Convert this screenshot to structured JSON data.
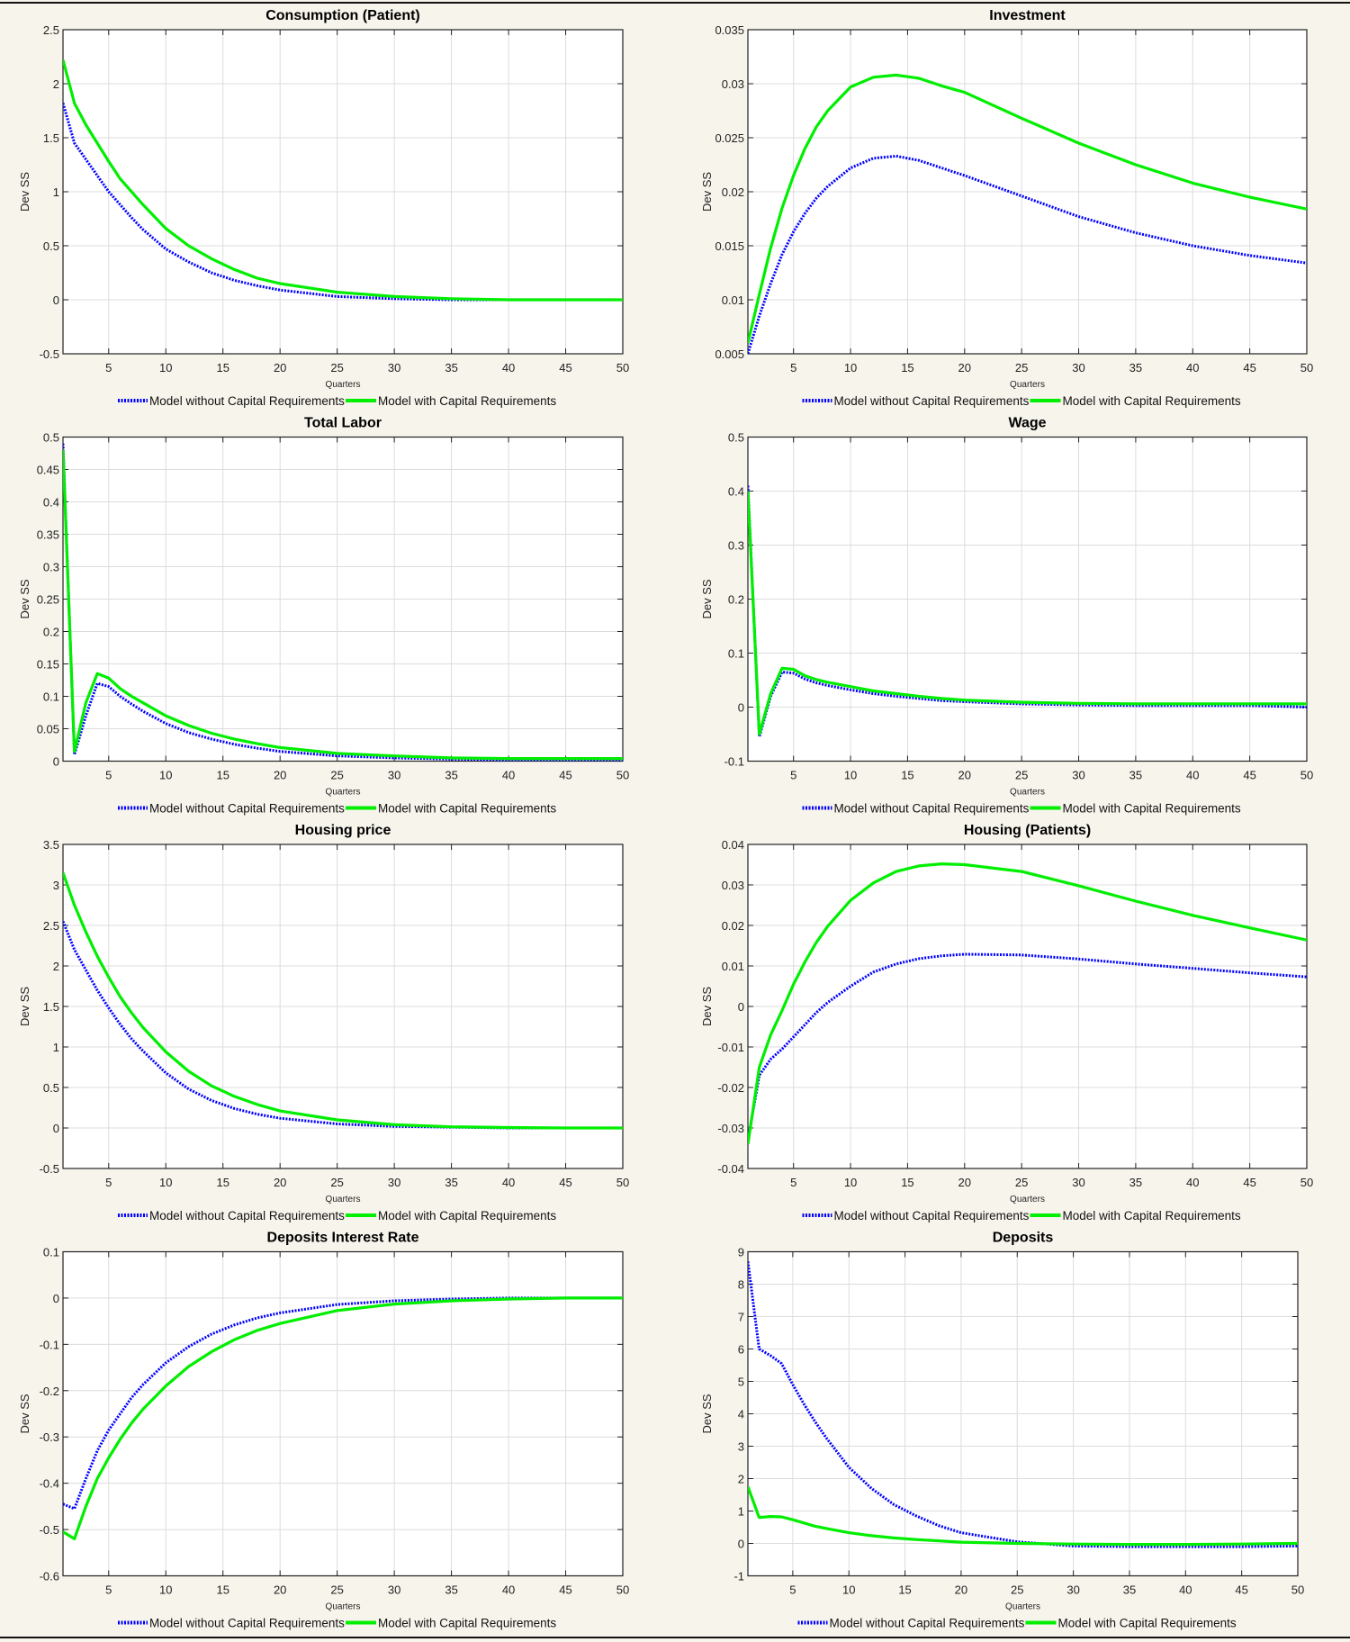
{
  "colors": {
    "without": "#0000ff",
    "with": "#00ee00",
    "grid": "#dcdcdc",
    "background": "#f7f4ec"
  },
  "legend": {
    "without": "Model without Capital Requirements",
    "with": "Model with Capital Requirements"
  },
  "chart_data": [
    {
      "type": "line",
      "title": "Consumption (Patient)",
      "xlabel": "Quarters",
      "ylabel": "Dev SS",
      "xlim": [
        1,
        50
      ],
      "ylim": [
        -0.5,
        2.5
      ],
      "grid": true,
      "legend_position": "bottom",
      "xticks": [
        5,
        10,
        15,
        20,
        25,
        30,
        35,
        40,
        45,
        50
      ],
      "yticks": [
        "-0.5",
        "0",
        "0.5",
        "1",
        "1.5",
        "2",
        "2.5"
      ],
      "x": [
        1,
        2,
        3,
        4,
        5,
        6,
        7,
        8,
        10,
        12,
        14,
        16,
        18,
        20,
        25,
        30,
        35,
        40,
        45,
        50
      ],
      "series": [
        {
          "name": "Model without Capital Requirements",
          "style": "dotted",
          "values": [
            1.82,
            1.45,
            1.3,
            1.15,
            1.0,
            0.88,
            0.76,
            0.65,
            0.47,
            0.35,
            0.25,
            0.18,
            0.13,
            0.09,
            0.03,
            0.01,
            0,
            0,
            0,
            0
          ]
        },
        {
          "name": "Model with Capital Requirements",
          "style": "solid",
          "values": [
            2.22,
            1.82,
            1.62,
            1.45,
            1.28,
            1.12,
            1.0,
            0.88,
            0.66,
            0.5,
            0.38,
            0.28,
            0.2,
            0.15,
            0.07,
            0.03,
            0.01,
            0,
            0,
            0
          ]
        }
      ]
    },
    {
      "type": "line",
      "title": "Investment",
      "xlabel": "Quarters",
      "ylabel": "Dev SS",
      "xlim": [
        1,
        50
      ],
      "ylim": [
        0.005,
        0.035
      ],
      "grid": true,
      "legend_position": "bottom",
      "xticks": [
        5,
        10,
        15,
        20,
        25,
        30,
        35,
        40,
        45,
        50
      ],
      "yticks": [
        "0.005",
        "0.01",
        "0.015",
        "0.02",
        "0.025",
        "0.03",
        "0.035"
      ],
      "x": [
        1,
        2,
        3,
        4,
        5,
        6,
        7,
        8,
        10,
        12,
        14,
        16,
        18,
        20,
        25,
        30,
        35,
        40,
        45,
        50
      ],
      "series": [
        {
          "name": "Model without Capital Requirements",
          "style": "dotted",
          "values": [
            0.005,
            0.0085,
            0.0115,
            0.0142,
            0.0163,
            0.018,
            0.0194,
            0.0205,
            0.0222,
            0.0231,
            0.0233,
            0.0229,
            0.0222,
            0.0215,
            0.0196,
            0.0177,
            0.0162,
            0.015,
            0.0141,
            0.0134
          ]
        },
        {
          "name": "Model with Capital Requirements",
          "style": "solid",
          "values": [
            0.006,
            0.0105,
            0.0148,
            0.0185,
            0.0215,
            0.024,
            0.026,
            0.0275,
            0.0297,
            0.0306,
            0.0308,
            0.0305,
            0.0298,
            0.0292,
            0.0268,
            0.0245,
            0.0225,
            0.0208,
            0.0195,
            0.0184
          ]
        }
      ]
    },
    {
      "type": "line",
      "title": "Total Labor",
      "xlabel": "Quarters",
      "ylabel": "Dev SS",
      "xlim": [
        1,
        50
      ],
      "ylim": [
        0,
        0.5
      ],
      "grid": true,
      "legend_position": "bottom",
      "xticks": [
        5,
        10,
        15,
        20,
        25,
        30,
        35,
        40,
        45,
        50
      ],
      "yticks": [
        "0",
        "0.05",
        "0.1",
        "0.15",
        "0.2",
        "0.25",
        "0.3",
        "0.35",
        "0.4",
        "0.45",
        "0.5"
      ],
      "x": [
        1,
        2,
        3,
        4,
        5,
        6,
        7,
        8,
        10,
        12,
        14,
        16,
        18,
        20,
        25,
        30,
        35,
        40,
        45,
        50
      ],
      "series": [
        {
          "name": "Model without Capital Requirements",
          "style": "dotted",
          "values": [
            0.49,
            0.01,
            0.07,
            0.12,
            0.115,
            0.1,
            0.088,
            0.077,
            0.058,
            0.044,
            0.034,
            0.026,
            0.02,
            0.015,
            0.008,
            0.005,
            0.003,
            0.002,
            0.002,
            0.002
          ]
        },
        {
          "name": "Model with Capital Requirements",
          "style": "solid",
          "values": [
            0.48,
            0.015,
            0.09,
            0.135,
            0.128,
            0.112,
            0.1,
            0.09,
            0.07,
            0.055,
            0.043,
            0.034,
            0.027,
            0.021,
            0.012,
            0.008,
            0.005,
            0.004,
            0.004,
            0.004
          ]
        }
      ]
    },
    {
      "type": "line",
      "title": "Wage",
      "xlabel": "Quarters",
      "ylabel": "Dev SS",
      "xlim": [
        1,
        50
      ],
      "ylim": [
        -0.1,
        0.5
      ],
      "grid": true,
      "legend_position": "bottom",
      "xticks": [
        5,
        10,
        15,
        20,
        25,
        30,
        35,
        40,
        45,
        50
      ],
      "yticks": [
        "-0.1",
        "0",
        "0.1",
        "0.2",
        "0.3",
        "0.4",
        "0.5"
      ],
      "x": [
        1,
        2,
        3,
        4,
        5,
        6,
        7,
        8,
        10,
        12,
        14,
        16,
        18,
        20,
        25,
        30,
        35,
        40,
        45,
        50
      ],
      "series": [
        {
          "name": "Model without Capital Requirements",
          "style": "dotted",
          "values": [
            0.41,
            -0.055,
            0.02,
            0.065,
            0.063,
            0.052,
            0.045,
            0.04,
            0.032,
            0.025,
            0.02,
            0.016,
            0.012,
            0.01,
            0.006,
            0.004,
            0.003,
            0.003,
            0.003,
            0.0
          ]
        },
        {
          "name": "Model with Capital Requirements",
          "style": "solid",
          "values": [
            0.4,
            -0.05,
            0.025,
            0.072,
            0.07,
            0.058,
            0.051,
            0.046,
            0.038,
            0.03,
            0.025,
            0.02,
            0.016,
            0.013,
            0.009,
            0.007,
            0.006,
            0.006,
            0.006,
            0.006
          ]
        }
      ]
    },
    {
      "type": "line",
      "title": "Housing price",
      "xlabel": "Quarters",
      "ylabel": "Dev SS",
      "xlim": [
        1,
        50
      ],
      "ylim": [
        -0.5,
        3.5
      ],
      "grid": true,
      "legend_position": "bottom",
      "xticks": [
        5,
        10,
        15,
        20,
        25,
        30,
        35,
        40,
        45,
        50
      ],
      "yticks": [
        "-0.5",
        "0",
        "0.5",
        "1",
        "1.5",
        "2",
        "2.5",
        "3",
        "3.5"
      ],
      "x": [
        1,
        2,
        3,
        4,
        5,
        6,
        7,
        8,
        10,
        12,
        14,
        16,
        18,
        20,
        25,
        30,
        35,
        40,
        45,
        50
      ],
      "series": [
        {
          "name": "Model without Capital Requirements",
          "style": "dotted",
          "values": [
            2.55,
            2.2,
            1.95,
            1.7,
            1.48,
            1.28,
            1.1,
            0.95,
            0.68,
            0.48,
            0.34,
            0.24,
            0.17,
            0.12,
            0.05,
            0.02,
            0.01,
            0,
            0,
            0
          ]
        },
        {
          "name": "Model with Capital Requirements",
          "style": "solid",
          "values": [
            3.15,
            2.75,
            2.42,
            2.12,
            1.86,
            1.62,
            1.42,
            1.24,
            0.94,
            0.7,
            0.52,
            0.39,
            0.29,
            0.21,
            0.1,
            0.04,
            0.015,
            0.005,
            0,
            0
          ]
        }
      ]
    },
    {
      "type": "line",
      "title": "Housing (Patients)",
      "xlabel": "Quarters",
      "ylabel": "Dev SS",
      "xlim": [
        1,
        50
      ],
      "ylim": [
        -0.04,
        0.04
      ],
      "grid": true,
      "legend_position": "bottom",
      "xticks": [
        5,
        10,
        15,
        20,
        25,
        30,
        35,
        40,
        45,
        50
      ],
      "yticks": [
        "-0.04",
        "-0.03",
        "-0.02",
        "-0.01",
        "0",
        "0.01",
        "0.02",
        "0.03",
        "0.04"
      ],
      "x": [
        1,
        2,
        3,
        4,
        5,
        6,
        7,
        8,
        10,
        12,
        14,
        16,
        18,
        20,
        25,
        30,
        35,
        40,
        45,
        50
      ],
      "series": [
        {
          "name": "Model without Capital Requirements",
          "style": "dotted",
          "values": [
            -0.033,
            -0.017,
            -0.013,
            -0.0105,
            -0.0075,
            -0.0045,
            -0.0015,
            0.001,
            0.005,
            0.0085,
            0.0105,
            0.0118,
            0.0125,
            0.0129,
            0.0127,
            0.0117,
            0.0105,
            0.0094,
            0.0083,
            0.0073
          ]
        },
        {
          "name": "Model with Capital Requirements",
          "style": "solid",
          "values": [
            -0.034,
            -0.015,
            -0.007,
            -0.001,
            0.0055,
            0.011,
            0.0158,
            0.0198,
            0.0262,
            0.0305,
            0.0333,
            0.0347,
            0.0352,
            0.035,
            0.0333,
            0.0298,
            0.026,
            0.0225,
            0.0194,
            0.0164
          ]
        }
      ]
    },
    {
      "type": "line",
      "title": "Deposits Interest Rate",
      "xlabel": "Quarters",
      "ylabel": "Dev SS",
      "xlim": [
        1,
        50
      ],
      "ylim": [
        -0.6,
        0.1
      ],
      "grid": true,
      "legend_position": "bottom",
      "xticks": [
        5,
        10,
        15,
        20,
        25,
        30,
        35,
        40,
        45,
        50
      ],
      "yticks": [
        "-0.6",
        "-0.5",
        "-0.4",
        "-0.3",
        "-0.2",
        "-0.1",
        "0",
        "0.1"
      ],
      "x": [
        1,
        2,
        3,
        4,
        5,
        6,
        7,
        8,
        10,
        12,
        14,
        16,
        18,
        20,
        25,
        30,
        35,
        40,
        45,
        50
      ],
      "series": [
        {
          "name": "Model without Capital Requirements",
          "style": "dotted",
          "values": [
            -0.445,
            -0.455,
            -0.39,
            -0.33,
            -0.285,
            -0.25,
            -0.215,
            -0.187,
            -0.14,
            -0.105,
            -0.078,
            -0.058,
            -0.043,
            -0.032,
            -0.014,
            -0.006,
            -0.002,
            0,
            0,
            0
          ]
        },
        {
          "name": "Model with Capital Requirements",
          "style": "solid",
          "values": [
            -0.505,
            -0.52,
            -0.45,
            -0.39,
            -0.345,
            -0.305,
            -0.27,
            -0.24,
            -0.19,
            -0.148,
            -0.116,
            -0.09,
            -0.07,
            -0.055,
            -0.027,
            -0.013,
            -0.006,
            -0.002,
            0,
            0
          ]
        }
      ]
    },
    {
      "type": "line",
      "title": "Deposits",
      "xlabel": "Quarters",
      "ylabel": "Dev SS",
      "xlim": [
        1,
        50
      ],
      "ylim": [
        -1,
        9
      ],
      "grid": true,
      "legend_position": "bottom",
      "xticks": [
        5,
        10,
        15,
        20,
        25,
        30,
        35,
        40,
        45,
        50
      ],
      "yticks": [
        "-1",
        "0",
        "1",
        "2",
        "3",
        "4",
        "5",
        "6",
        "7",
        "8",
        "9"
      ],
      "x": [
        1,
        2,
        3,
        4,
        5,
        6,
        7,
        8,
        10,
        12,
        14,
        16,
        18,
        20,
        25,
        30,
        35,
        40,
        45,
        50
      ],
      "series": [
        {
          "name": "Model without Capital Requirements",
          "style": "dotted",
          "values": [
            8.7,
            6.0,
            5.8,
            5.55,
            4.9,
            4.3,
            3.75,
            3.25,
            2.35,
            1.7,
            1.2,
            0.85,
            0.55,
            0.33,
            0.05,
            -0.08,
            -0.1,
            -0.1,
            -0.1,
            -0.08
          ]
        },
        {
          "name": "Model with Capital Requirements",
          "style": "solid",
          "values": [
            1.75,
            0.8,
            0.83,
            0.82,
            0.73,
            0.63,
            0.53,
            0.46,
            0.33,
            0.24,
            0.17,
            0.12,
            0.08,
            0.04,
            0,
            -0.02,
            -0.03,
            -0.03,
            -0.02,
            0
          ]
        }
      ]
    }
  ]
}
